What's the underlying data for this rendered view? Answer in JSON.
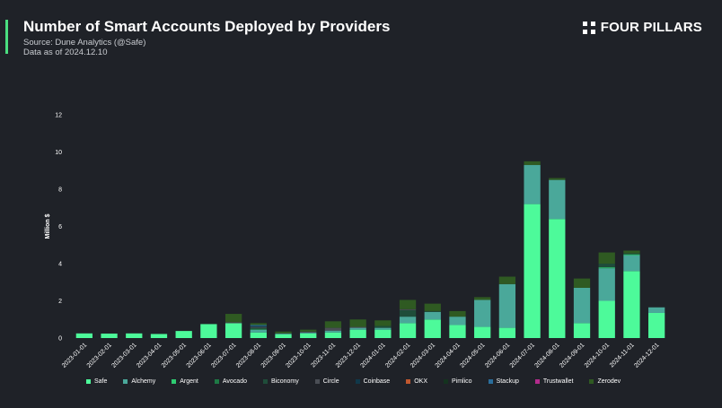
{
  "header": {
    "title": "Number of Smart Accounts Deployed by Providers",
    "source": "Source: Dune Analytics (@Safe)",
    "date": "Data as of 2024.12.10",
    "brand": "FOUR PILLARS"
  },
  "colors": {
    "background": "#1f2228",
    "accent": "#4ade80"
  },
  "chart_data": {
    "type": "bar",
    "stacked": true,
    "ylabel": "Million $",
    "xlabel": "",
    "ylim": [
      0,
      12
    ],
    "yticks": [
      0,
      2,
      4,
      6,
      8,
      10,
      12
    ],
    "grid": false,
    "legend_position": "bottom",
    "categories": [
      "2023-01-01",
      "2023-02-01",
      "2023-03-01",
      "2023-04-01",
      "2023-05-01",
      "2023-06-01",
      "2023-07-01",
      "2023-08-01",
      "2023-09-01",
      "2023-10-01",
      "2023-11-01",
      "2023-12-01",
      "2024-01-01",
      "2024-02-01",
      "2024-03-01",
      "2024-04-01",
      "2024-05-01",
      "2024-06-01",
      "2024-07-01",
      "2024-08-01",
      "2024-09-01",
      "2024-10-01",
      "2024-11-01",
      "2024-12-01"
    ],
    "series": [
      {
        "name": "Safe",
        "color": "#4dfa9a",
        "values": [
          0.25,
          0.24,
          0.25,
          0.22,
          0.38,
          0.75,
          0.8,
          0.3,
          0.2,
          0.25,
          0.3,
          0.45,
          0.45,
          0.8,
          1.0,
          0.7,
          0.6,
          0.55,
          7.2,
          6.4,
          0.8,
          2.0,
          3.6,
          1.35
        ]
      },
      {
        "name": "Alchemy",
        "color": "#4aa89a",
        "values": [
          0,
          0,
          0,
          0,
          0,
          0,
          0,
          0.15,
          0.05,
          0.05,
          0.1,
          0.1,
          0.1,
          0.35,
          0.4,
          0.45,
          1.45,
          2.35,
          2.1,
          2.1,
          1.9,
          1.75,
          0.85,
          0.3
        ]
      },
      {
        "name": "Argent",
        "color": "#2ecc71",
        "values": [
          0,
          0,
          0,
          0,
          0,
          0,
          0,
          0,
          0,
          0,
          0,
          0,
          0,
          0,
          0,
          0,
          0,
          0,
          0,
          0,
          0,
          0.05,
          0.05,
          0
        ]
      },
      {
        "name": "Avocado",
        "color": "#1e7a45",
        "values": [
          0,
          0,
          0,
          0,
          0,
          0,
          0,
          0.05,
          0,
          0,
          0,
          0,
          0,
          0,
          0,
          0,
          0,
          0,
          0,
          0,
          0,
          0,
          0,
          0
        ]
      },
      {
        "name": "Biconomy",
        "color": "#1f4d3a",
        "values": [
          0,
          0,
          0,
          0,
          0,
          0,
          0,
          0.05,
          0,
          0,
          0,
          0,
          0.1,
          0.35,
          0.05,
          0,
          0,
          0,
          0,
          0,
          0,
          0.2,
          0.05,
          0
        ]
      },
      {
        "name": "Circle",
        "color": "#4a4e55",
        "values": [
          0,
          0,
          0,
          0,
          0,
          0,
          0.05,
          0.05,
          0,
          0.05,
          0.15,
          0.05,
          0,
          0.05,
          0,
          0,
          0,
          0,
          0,
          0,
          0,
          0,
          0,
          0
        ]
      },
      {
        "name": "Coinbase",
        "color": "#10384a",
        "values": [
          0,
          0,
          0,
          0,
          0,
          0,
          0,
          0.05,
          0,
          0,
          0,
          0,
          0,
          0,
          0,
          0,
          0,
          0,
          0,
          0,
          0,
          0,
          0,
          0
        ]
      },
      {
        "name": "OKX",
        "color": "#c0582f",
        "values": [
          0,
          0,
          0,
          0,
          0,
          0,
          0,
          0,
          0,
          0,
          0,
          0,
          0,
          0,
          0,
          0,
          0,
          0,
          0,
          0,
          0,
          0,
          0,
          0
        ]
      },
      {
        "name": "Pimlico",
        "color": "#14331f",
        "values": [
          0,
          0,
          0,
          0,
          0,
          0,
          0,
          0,
          0,
          0,
          0,
          0,
          0,
          0,
          0,
          0,
          0,
          0,
          0,
          0,
          0,
          0,
          0,
          0
        ]
      },
      {
        "name": "Stackup",
        "color": "#2a6d9b",
        "values": [
          0,
          0,
          0,
          0,
          0,
          0,
          0,
          0.05,
          0,
          0,
          0,
          0,
          0,
          0,
          0,
          0,
          0,
          0,
          0,
          0,
          0,
          0,
          0,
          0
        ]
      },
      {
        "name": "Trustwallet",
        "color": "#b32b8c",
        "values": [
          0,
          0,
          0,
          0,
          0,
          0,
          0,
          0,
          0,
          0,
          0,
          0,
          0,
          0,
          0,
          0,
          0,
          0,
          0,
          0,
          0,
          0,
          0,
          0
        ]
      },
      {
        "name": "Zerodev",
        "color": "#2f5a22",
        "values": [
          0,
          0,
          0,
          0,
          0,
          0,
          0.45,
          0.1,
          0.1,
          0.1,
          0.35,
          0.4,
          0.3,
          0.5,
          0.4,
          0.3,
          0.15,
          0.4,
          0.2,
          0.1,
          0.5,
          0.6,
          0.15,
          0
        ]
      }
    ]
  }
}
